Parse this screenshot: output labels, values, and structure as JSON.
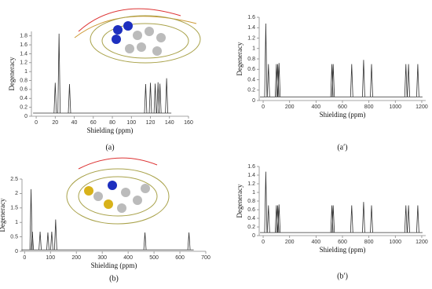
{
  "chart_data": [
    {
      "type": "stem",
      "title": "(a)",
      "xlabel": "Shielding (ppm)",
      "ylabel": "Degeneracy",
      "color": "#333333",
      "baseline": 0.07,
      "x": [
        20,
        24,
        35,
        115,
        120,
        125,
        128,
        130,
        137
      ],
      "values": [
        0.75,
        1.85,
        0.72,
        0.72,
        0.75,
        0.73,
        0.76,
        0.73,
        0.85
      ],
      "xlim": [
        -5,
        160
      ],
      "xticks": [
        0,
        20,
        40,
        60,
        80,
        100,
        120,
        140,
        160
      ],
      "ylim": [
        0,
        1.9
      ],
      "yticks": [
        0,
        0.2,
        0.4,
        0.6,
        0.8,
        1,
        1.2,
        1.4,
        1.6,
        1.8
      ]
    },
    {
      "type": "stem",
      "title": "(a′)",
      "xlabel": "Shielding (ppm)",
      "ylabel": "Degeneracy",
      "color": "#333333",
      "baseline": 0.07,
      "x": [
        20,
        40,
        100,
        110,
        120,
        520,
        530,
        670,
        760,
        820,
        1080,
        1100,
        1170
      ],
      "values": [
        1.48,
        0.7,
        0.7,
        0.7,
        0.72,
        0.7,
        0.7,
        0.7,
        0.78,
        0.7,
        0.7,
        0.7,
        0.7
      ],
      "xlim": [
        -30,
        1230
      ],
      "xticks": [
        0,
        200,
        400,
        600,
        800,
        1000,
        1200
      ],
      "ylim": [
        0,
        1.6
      ],
      "yticks": [
        0,
        0.2,
        0.4,
        0.6,
        0.8,
        1,
        1.2,
        1.4,
        1.6
      ]
    },
    {
      "type": "stem",
      "title": "(b)",
      "xlabel": "Shielding (ppm)",
      "ylabel": "Degeneracy",
      "color": "#333333",
      "baseline": 0.05,
      "x": [
        25,
        30,
        60,
        90,
        105,
        120,
        465,
        635
      ],
      "values": [
        2.15,
        0.68,
        0.68,
        0.65,
        0.68,
        1.1,
        0.65,
        0.65
      ],
      "xlim": [
        -10,
        700
      ],
      "xticks": [
        0,
        100,
        200,
        300,
        400,
        500,
        600,
        700
      ],
      "ylim": [
        0,
        2.5
      ],
      "yticks": [
        0,
        0.5,
        1,
        1.5,
        2,
        2.5
      ]
    },
    {
      "type": "stem",
      "title": "(b′)",
      "xlabel": "Shielding (ppm)",
      "ylabel": "Degeneracy",
      "color": "#333333",
      "baseline": 0.07,
      "x": [
        20,
        40,
        100,
        110,
        120,
        520,
        530,
        670,
        760,
        820,
        1080,
        1100,
        1170
      ],
      "values": [
        1.48,
        0.7,
        0.7,
        0.7,
        0.72,
        0.7,
        0.7,
        0.7,
        0.78,
        0.7,
        0.7,
        0.7,
        0.7
      ],
      "xlim": [
        -30,
        1230
      ],
      "xticks": [
        0,
        200,
        400,
        600,
        800,
        1000,
        1200
      ],
      "ylim": [
        0,
        1.6
      ],
      "yticks": [
        0,
        0.2,
        0.4,
        0.6,
        0.8,
        1,
        1.2,
        1.4,
        1.6
      ]
    }
  ]
}
